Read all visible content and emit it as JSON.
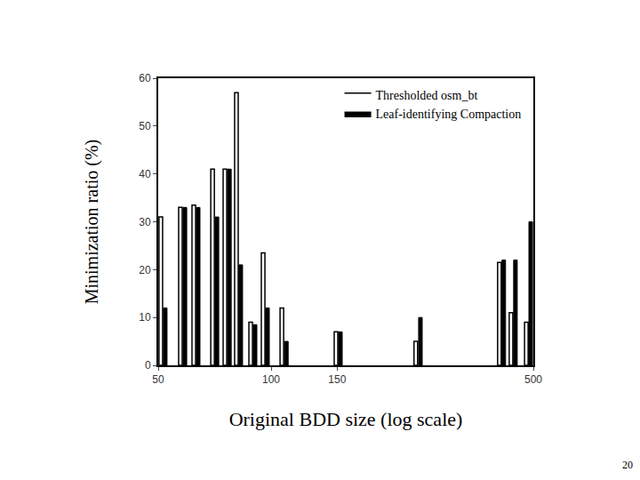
{
  "chart_data": {
    "type": "bar",
    "x_label": "Original BDD size (log scale)",
    "y_label": "Minimization ratio (%)",
    "log": "x",
    "grid": false,
    "legend": "upper right",
    "xlim": [
      50,
      500
    ],
    "xticks": [
      50,
      100,
      150,
      500
    ],
    "ylim": [
      0,
      60
    ],
    "yticks": [
      0,
      10,
      20,
      30,
      40,
      50,
      60
    ],
    "series": [
      {
        "name": "Thresholded osm_bt",
        "color": "#ffffff",
        "marker": "hollow",
        "x": [
          50.8,
          57.3,
          62.2,
          69.8,
          75.3,
          80.8,
          88.2,
          95.2,
          106.8,
          148.9,
          243,
          406,
          436,
          479
        ],
        "values": [
          31,
          33,
          33.5,
          41,
          41,
          57,
          9,
          23.5,
          12,
          7,
          5,
          21.5,
          11,
          9
        ]
      },
      {
        "name": "Leaf-identifying Compaction",
        "color": "#000000",
        "marker": "filled",
        "x": [
          52.2,
          58.9,
          63.9,
          71.7,
          77.4,
          83.0,
          90.6,
          97.8,
          109.8,
          153,
          250,
          417,
          448,
          492
        ],
        "values": [
          12,
          33,
          33,
          31,
          41,
          21,
          8.5,
          12,
          5,
          7,
          10,
          22,
          22,
          30
        ]
      }
    ],
    "annotations": [
      "20"
    ]
  }
}
